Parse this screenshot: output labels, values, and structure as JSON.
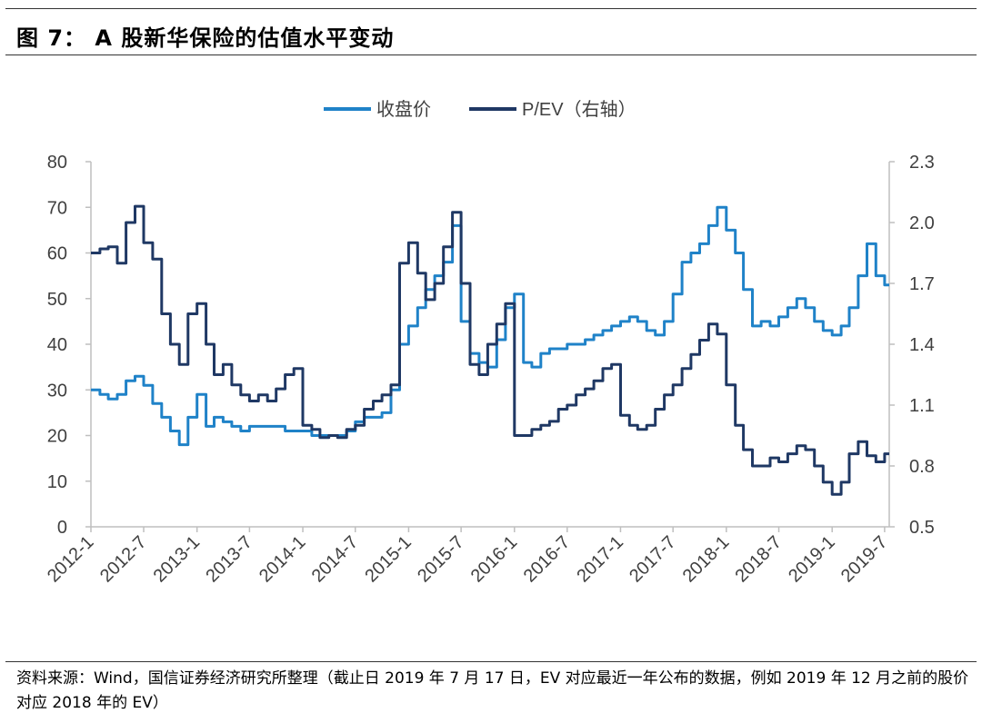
{
  "figure": {
    "title": "图 7： A 股新华保险的估值水平变动",
    "footnote": "资料来源：Wind，国信证券经济研究所整理（截止日 2019 年 7 月 17 日，EV 对应最近一年公布的数据，例如 2019 年 12 月之前的股价对应 2018 年的 EV）"
  },
  "chart_data": {
    "type": "line",
    "title": "",
    "xlabel": "",
    "ylabel": "",
    "legend_position": "top-center",
    "grid": false,
    "x_ticks": [
      "2012-1",
      "2012-7",
      "2013-1",
      "2013-7",
      "2014-1",
      "2014-7",
      "2015-1",
      "2015-7",
      "2016-1",
      "2016-7",
      "2017-1",
      "2017-7",
      "2018-1",
      "2018-7",
      "2019-1",
      "2019-7"
    ],
    "y_left": {
      "ticks": [
        "0",
        "10",
        "20",
        "30",
        "40",
        "50",
        "60",
        "70",
        "80"
      ],
      "range": [
        0,
        80
      ]
    },
    "y_right": {
      "ticks": [
        "0.5",
        "0.8",
        "1.1",
        "1.4",
        "1.7",
        "2.0",
        "2.3"
      ],
      "range": [
        0.5,
        2.3
      ]
    },
    "series": [
      {
        "name": "收盘价",
        "axis": "left",
        "color": "#1f82c8",
        "x": [
          "2012-01",
          "2012-02",
          "2012-03",
          "2012-04",
          "2012-05",
          "2012-06",
          "2012-07",
          "2012-08",
          "2012-09",
          "2012-10",
          "2012-11",
          "2012-12",
          "2013-01",
          "2013-02",
          "2013-03",
          "2013-04",
          "2013-05",
          "2013-06",
          "2013-07",
          "2013-08",
          "2013-09",
          "2013-10",
          "2013-11",
          "2013-12",
          "2014-01",
          "2014-02",
          "2014-03",
          "2014-04",
          "2014-05",
          "2014-06",
          "2014-07",
          "2014-08",
          "2014-09",
          "2014-10",
          "2014-11",
          "2014-12",
          "2015-01",
          "2015-02",
          "2015-03",
          "2015-04",
          "2015-05",
          "2015-06",
          "2015-07",
          "2015-08",
          "2015-09",
          "2015-10",
          "2015-11",
          "2015-12",
          "2016-01",
          "2016-02",
          "2016-03",
          "2016-04",
          "2016-05",
          "2016-06",
          "2016-07",
          "2016-08",
          "2016-09",
          "2016-10",
          "2016-11",
          "2016-12",
          "2017-01",
          "2017-02",
          "2017-03",
          "2017-04",
          "2017-05",
          "2017-06",
          "2017-07",
          "2017-08",
          "2017-09",
          "2017-10",
          "2017-11",
          "2017-12",
          "2018-01",
          "2018-02",
          "2018-03",
          "2018-04",
          "2018-05",
          "2018-06",
          "2018-07",
          "2018-08",
          "2018-09",
          "2018-10",
          "2018-11",
          "2018-12",
          "2019-01",
          "2019-02",
          "2019-03",
          "2019-04",
          "2019-05",
          "2019-06",
          "2019-07"
        ],
        "values": [
          30,
          29,
          28,
          29,
          32,
          33,
          31,
          27,
          24,
          21,
          18,
          24,
          29,
          22,
          24,
          23,
          22,
          21,
          22,
          22,
          22,
          22,
          21,
          21,
          21,
          20,
          20,
          20,
          20,
          21,
          23,
          24,
          24,
          25,
          30,
          40,
          44,
          48,
          52,
          55,
          58,
          66,
          45,
          38,
          36,
          35,
          41,
          48,
          51,
          36,
          35,
          38,
          39,
          39,
          40,
          40,
          41,
          42,
          43,
          44,
          45,
          46,
          45,
          43,
          42,
          45,
          51,
          58,
          60,
          62,
          66,
          70,
          65,
          60,
          52,
          44,
          45,
          44,
          46,
          48,
          50,
          48,
          45,
          43,
          42,
          44,
          48,
          55,
          62,
          55,
          53
        ]
      },
      {
        "name": "P/EV（右轴）",
        "axis": "right",
        "color": "#1f3864",
        "x": [
          "2012-01",
          "2012-02",
          "2012-03",
          "2012-04",
          "2012-05",
          "2012-06",
          "2012-07",
          "2012-08",
          "2012-09",
          "2012-10",
          "2012-11",
          "2012-12",
          "2013-01",
          "2013-02",
          "2013-03",
          "2013-04",
          "2013-05",
          "2013-06",
          "2013-07",
          "2013-08",
          "2013-09",
          "2013-10",
          "2013-11",
          "2013-12",
          "2014-01",
          "2014-02",
          "2014-03",
          "2014-04",
          "2014-05",
          "2014-06",
          "2014-07",
          "2014-08",
          "2014-09",
          "2014-10",
          "2014-11",
          "2014-12",
          "2015-01",
          "2015-02",
          "2015-03",
          "2015-04",
          "2015-05",
          "2015-06",
          "2015-07",
          "2015-08",
          "2015-09",
          "2015-10",
          "2015-11",
          "2015-12",
          "2016-01",
          "2016-02",
          "2016-03",
          "2016-04",
          "2016-05",
          "2016-06",
          "2016-07",
          "2016-08",
          "2016-09",
          "2016-10",
          "2016-11",
          "2016-12",
          "2017-01",
          "2017-02",
          "2017-03",
          "2017-04",
          "2017-05",
          "2017-06",
          "2017-07",
          "2017-08",
          "2017-09",
          "2017-10",
          "2017-11",
          "2017-12",
          "2018-01",
          "2018-02",
          "2018-03",
          "2018-04",
          "2018-05",
          "2018-06",
          "2018-07",
          "2018-08",
          "2018-09",
          "2018-10",
          "2018-11",
          "2018-12",
          "2019-01",
          "2019-02",
          "2019-03",
          "2019-04",
          "2019-05",
          "2019-06",
          "2019-07"
        ],
        "values": [
          1.85,
          1.87,
          1.88,
          1.8,
          2.0,
          2.08,
          1.9,
          1.82,
          1.55,
          1.4,
          1.3,
          1.55,
          1.6,
          1.4,
          1.25,
          1.3,
          1.2,
          1.15,
          1.12,
          1.15,
          1.12,
          1.18,
          1.25,
          1.28,
          1.0,
          0.98,
          0.94,
          0.95,
          0.94,
          0.98,
          1.0,
          1.08,
          1.12,
          1.15,
          1.2,
          1.8,
          1.9,
          1.75,
          1.62,
          1.7,
          1.88,
          2.05,
          1.7,
          1.3,
          1.25,
          1.4,
          1.5,
          1.6,
          0.95,
          0.95,
          0.98,
          1.0,
          1.02,
          1.08,
          1.1,
          1.15,
          1.18,
          1.22,
          1.28,
          1.3,
          1.05,
          1.0,
          0.98,
          1.0,
          1.08,
          1.15,
          1.2,
          1.28,
          1.35,
          1.42,
          1.5,
          1.45,
          1.2,
          1.0,
          0.88,
          0.8,
          0.8,
          0.84,
          0.82,
          0.86,
          0.9,
          0.88,
          0.8,
          0.72,
          0.66,
          0.72,
          0.86,
          0.92,
          0.85,
          0.82,
          0.86
        ]
      }
    ]
  }
}
